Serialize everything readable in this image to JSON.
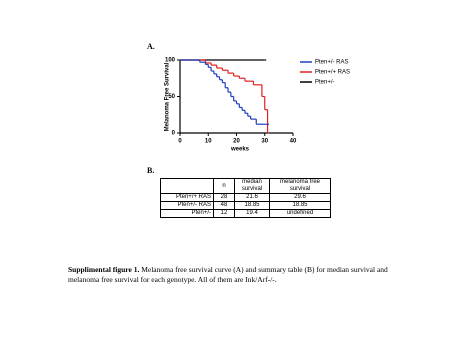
{
  "panel_labels": [
    "A.",
    "B."
  ],
  "chart_data": {
    "type": "line",
    "step": true,
    "xlabel": "weeks",
    "ylabel": "Melanoma Free Survival",
    "xlim": [
      0,
      40
    ],
    "ylim": [
      0,
      100
    ],
    "xticks": [
      0,
      10,
      20,
      30,
      40
    ],
    "yticks": [
      0,
      50,
      100
    ],
    "series": [
      {
        "name": "Pten+/- RAS",
        "color": "#1f3fbf",
        "x": [
          0,
          7,
          9,
          10,
          11,
          12,
          13,
          14,
          15,
          16,
          17,
          18,
          19,
          20,
          21,
          22,
          23,
          24,
          25,
          27,
          31
        ],
        "values": [
          100,
          97,
          94,
          90,
          85,
          81,
          77,
          73,
          69,
          62,
          56,
          50,
          44,
          40,
          35,
          31,
          27,
          23,
          19,
          12,
          12
        ]
      },
      {
        "name": "Pten+/+ RAS",
        "color": "#e02020",
        "x": [
          0,
          9,
          11,
          13,
          15,
          17,
          19,
          21,
          23,
          26,
          29,
          30,
          31
        ],
        "values": [
          100,
          96,
          93,
          89,
          86,
          82,
          78,
          75,
          71,
          66,
          50,
          32,
          0
        ]
      },
      {
        "name": "Pten+/-",
        "color": "#000000",
        "x": [
          0,
          30
        ],
        "values": [
          100,
          100
        ]
      }
    ]
  },
  "table": {
    "header": [
      "n",
      "median survival",
      "melanoma free survival"
    ],
    "rows": [
      [
        "Pten+/+ RAS",
        "28",
        "21.6",
        "29.6"
      ],
      [
        "Pten+/- RAS",
        "48",
        "18.85",
        "18.85"
      ],
      [
        "Pten+/-",
        "12",
        "19.4",
        "undefined"
      ]
    ]
  },
  "caption": {
    "label": "Supplimental figure 1.",
    "text": "Melanoma free survival curve (A) and summary table (B) for median survival and melanoma free survival for each genotype. All of them are Ink/Arf-/-."
  }
}
